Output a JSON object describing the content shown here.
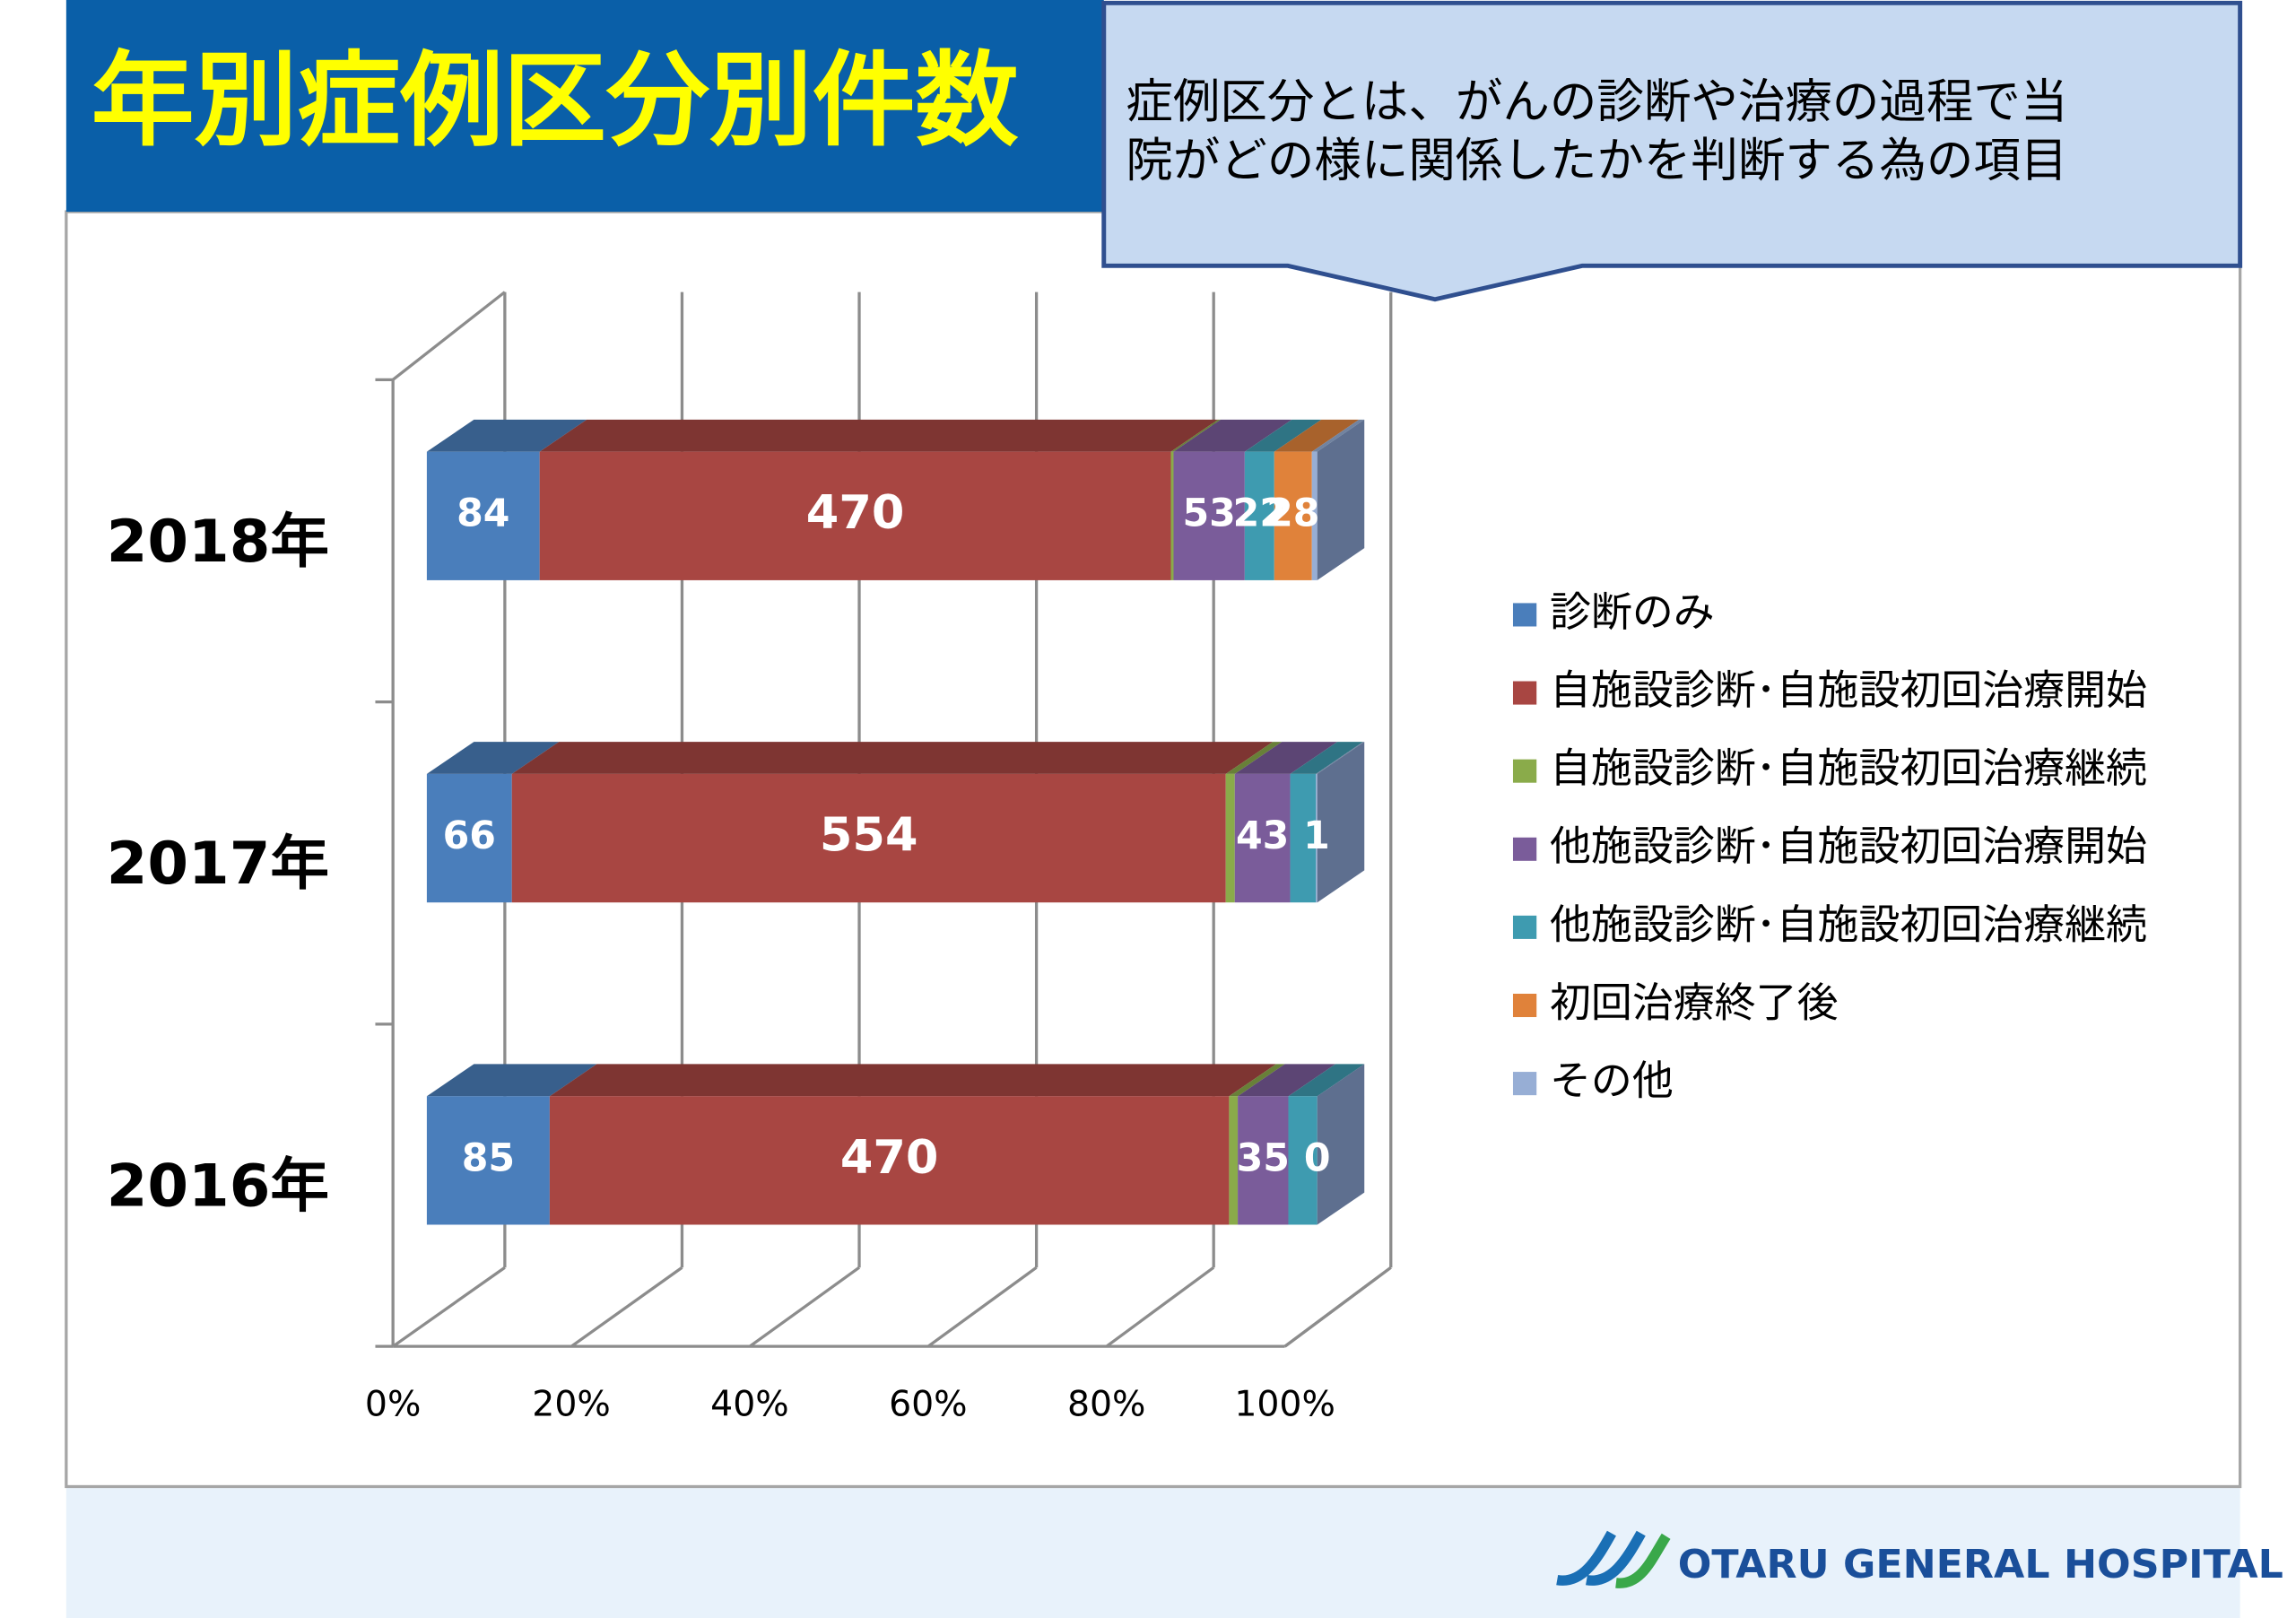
{
  "header": {
    "title": "年別症例区分別件数"
  },
  "callout": {
    "lines": [
      "症例区分とは、がんの診断や治療の過程で当",
      "院がどの様に関係したかを判断する為の項目"
    ]
  },
  "footer": {
    "logo": "OTARU GENERAL HOSPITAL"
  },
  "chart_data": {
    "type": "stacked-bar-100",
    "categories": [
      "2018年",
      "2017年",
      "2016年"
    ],
    "series": [
      {
        "name": "診断のみ",
        "color": "#4a7ebb",
        "values": [
          84,
          66,
          85
        ],
        "value_labels": [
          "84",
          "66",
          "85"
        ]
      },
      {
        "name": "自施設診断･自施設初回治療開始",
        "color": "#a84642",
        "values": [
          470,
          554,
          470
        ],
        "value_labels": [
          "470",
          "554",
          "470"
        ]
      },
      {
        "name": "自施設診断･自施設初回治療継続",
        "color": "#8aab4a",
        "values": [
          2,
          7,
          6
        ],
        "value_labels": [
          null,
          null,
          null
        ]
      },
      {
        "name": "他施設診断･自施設初回治療開始",
        "color": "#7a5c9a",
        "values": [
          53,
          43,
          35
        ],
        "value_labels": [
          "53",
          "43",
          "35"
        ]
      },
      {
        "name": "他施設診断･自施設初回治療継続",
        "color": "#3e9bb0",
        "values": [
          22,
          20,
          20
        ],
        "value_labels": [
          "22",
          null,
          null
        ]
      },
      {
        "name": "初回治療終了後",
        "color": "#e0823a",
        "values": [
          28,
          0,
          0
        ],
        "value_labels": [
          "28",
          null,
          null
        ]
      },
      {
        "name": "その他",
        "color": "#97aed5",
        "values": [
          4,
          1,
          0
        ],
        "value_labels": [
          null,
          "1",
          "0"
        ]
      }
    ],
    "xlim": [
      0,
      100
    ],
    "xticks": [
      {
        "value": 0,
        "label": "0%"
      },
      {
        "value": 20,
        "label": "20%"
      },
      {
        "value": 40,
        "label": "40%"
      },
      {
        "value": 60,
        "label": "60%"
      },
      {
        "value": 80,
        "label": "80%"
      },
      {
        "value": 100,
        "label": "100%"
      }
    ],
    "grid": true,
    "legend": "right"
  }
}
